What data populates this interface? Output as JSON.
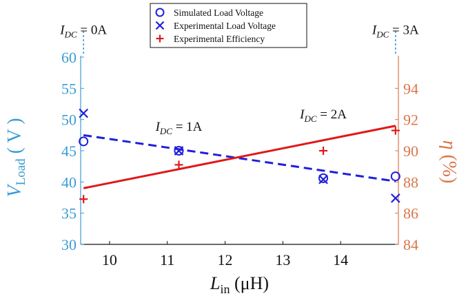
{
  "chart_data": {
    "type": "scatter",
    "x_axis": {
      "label_main": "L",
      "label_sub": "in",
      "label_unit": " (μH)",
      "range": [
        9.5,
        15.0
      ],
      "ticks": [
        10,
        11,
        12,
        13,
        14
      ]
    },
    "y_left": {
      "label_main": "V",
      "label_sub": "Load",
      "label_unit": " ( V )",
      "range": [
        30,
        60
      ],
      "ticks": [
        30,
        35,
        40,
        45,
        50,
        55,
        60
      ],
      "color": "#3a9bd5"
    },
    "y_right": {
      "label_main": "η",
      "label_unit": " (%)",
      "range": [
        84,
        96
      ],
      "ticks": [
        84,
        86,
        88,
        90,
        92,
        94
      ],
      "color": "#d9764a"
    },
    "series": [
      {
        "name": "Simulated Load Voltage",
        "marker": "circle",
        "axis": "left",
        "color": "#1f1fdc",
        "x": [
          9.55,
          11.2,
          13.7,
          14.95
        ],
        "y": [
          46.5,
          45.0,
          40.6,
          40.9
        ]
      },
      {
        "name": "Experimental Load Voltage",
        "marker": "x",
        "axis": "left",
        "color": "#1f1fdc",
        "x": [
          9.55,
          11.2,
          13.7,
          14.95
        ],
        "y": [
          51.0,
          45.0,
          40.4,
          37.4
        ]
      },
      {
        "name": "Experimental Efficiency",
        "marker": "plus",
        "axis": "right",
        "color": "#e01818",
        "x": [
          9.55,
          11.2,
          13.7,
          14.95
        ],
        "y": [
          86.9,
          89.1,
          90.0,
          91.3
        ]
      }
    ],
    "fit_lines": [
      {
        "axis": "left",
        "style": "dashed",
        "color": "#1f1fdc",
        "x": [
          9.55,
          14.95
        ],
        "y": [
          47.5,
          40.1
        ]
      },
      {
        "axis": "right",
        "style": "solid",
        "color": "#e01818",
        "x": [
          9.55,
          14.95
        ],
        "y": [
          87.6,
          91.6
        ]
      }
    ],
    "annotations": [
      {
        "main": "I",
        "sub": "DC",
        "text": " = 0A",
        "x": 9.55,
        "axis": "left",
        "y": 63.7
      },
      {
        "main": "I",
        "sub": "DC",
        "text": " = 1A",
        "x": 11.2,
        "axis": "left",
        "y": 48.2
      },
      {
        "main": "I",
        "sub": "DC",
        "text": " = 2A",
        "x": 13.7,
        "axis": "left",
        "y": 50.2
      },
      {
        "main": "I",
        "sub": "DC",
        "text": " = 3A",
        "x": 14.95,
        "axis": "left",
        "y": 63.7
      }
    ],
    "legend_position": "top-center",
    "grid": false
  }
}
